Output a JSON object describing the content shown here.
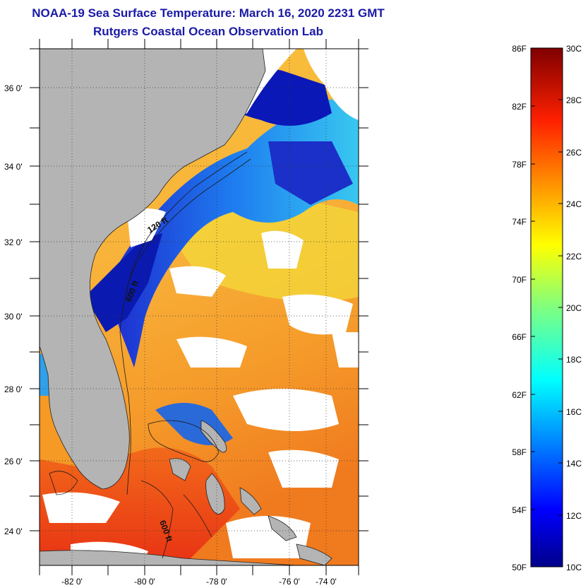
{
  "header": {
    "title_line1": "NOAA-19 Sea Surface Temperature:  March 16, 2020 2231 GMT",
    "title_line2": "Rutgers Coastal Ocean Observation Lab"
  },
  "map": {
    "lat_labels": [
      "36 0'",
      "34 0'",
      "32 0'",
      "30 0'",
      "28 0'",
      "26 0'",
      "24 0'"
    ],
    "lon_labels": [
      "-82 0'",
      "-80 0'",
      "-78 0'",
      "-76 0'",
      "-74 0'"
    ],
    "isobath_labels": [
      "120 ft",
      "600 ft",
      "600 ft"
    ],
    "colors": {
      "land": "#b4b4b4",
      "cloud": "#ffffff"
    }
  },
  "colorbar": {
    "fahrenheit": [
      "86F",
      "82F",
      "78F",
      "74F",
      "70F",
      "66F",
      "62F",
      "58F",
      "54F",
      "50F"
    ],
    "celsius": [
      "30C",
      "28C",
      "26C",
      "24C",
      "22C",
      "20C",
      "18C",
      "16C",
      "14C",
      "12C",
      "10C"
    ]
  }
}
